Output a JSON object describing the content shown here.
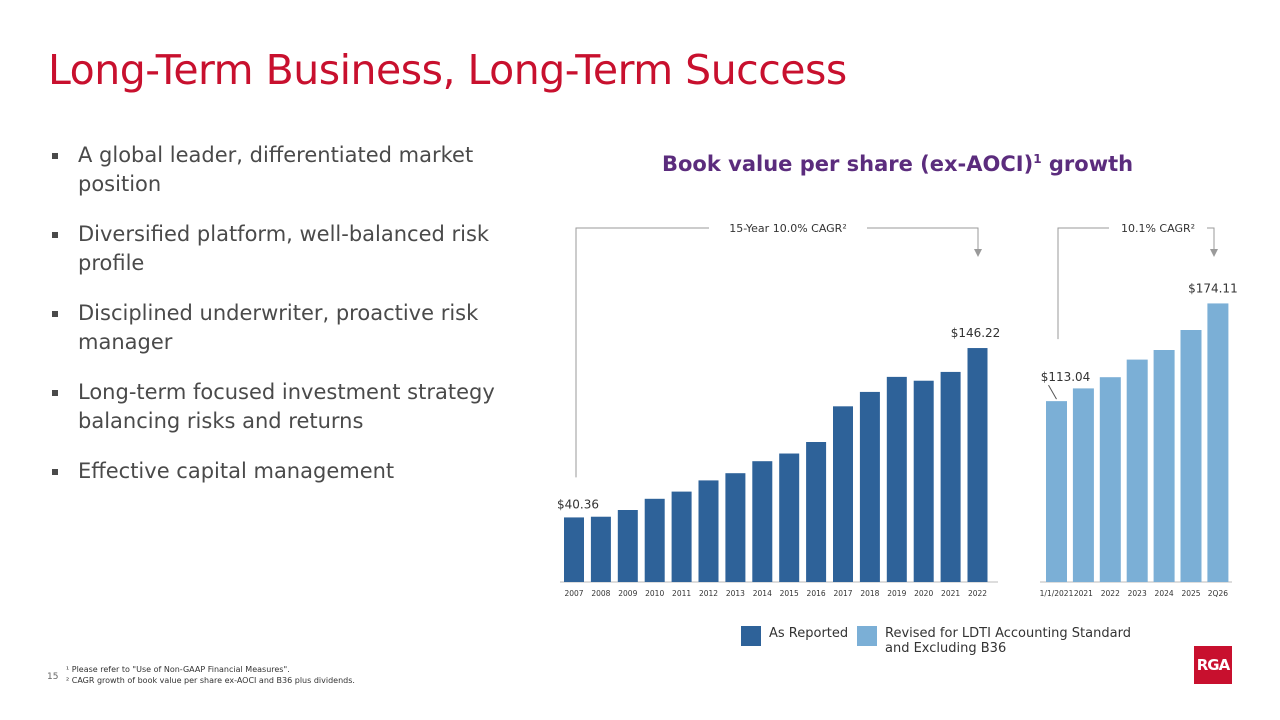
{
  "slide": {
    "title": "Long-Term Business, Long-Term Success",
    "bullets": [
      "A global leader, differentiated market position",
      "Diversified platform, well-balanced risk profile",
      "Disciplined underwriter, proactive risk manager",
      "Long-term focused investment strategy balancing risks and returns",
      "Effective capital management"
    ],
    "page_number": "15",
    "footnotes": [
      "¹ Please refer to \"Use of Non-GAAP Financial Measures\".",
      "² CAGR growth of book value per share ex-AOCI and B36 plus dividends."
    ],
    "logo_text": "RGA"
  },
  "chart_title": {
    "main": "Book value per share (ex-AOCI)",
    "sup": "1",
    "tail": " growth"
  },
  "chart_data": [
    {
      "type": "bar",
      "categories": [
        "2007",
        "2008",
        "2009",
        "2010",
        "2011",
        "2012",
        "2013",
        "2014",
        "2015",
        "2016",
        "2017",
        "2018",
        "2019",
        "2020",
        "2021",
        "2022"
      ],
      "series": [
        {
          "name": "As Reported",
          "color": "#2e6299",
          "values": [
            40.36,
            40.8,
            45.0,
            52.0,
            56.5,
            63.5,
            68.0,
            75.5,
            80.3,
            87.5,
            109.8,
            118.8,
            128.2,
            125.8,
            131.3,
            146.22
          ]
        }
      ],
      "data_labels": {
        "first": "$40.36",
        "last": "$146.22"
      },
      "annotation": "15-Year 10.0% CAGR²"
    },
    {
      "type": "bar",
      "categories": [
        "1/1/2021",
        "2021",
        "2022",
        "2023",
        "2024",
        "2025",
        "2Q26"
      ],
      "series": [
        {
          "name": "Revised for LDTI Accounting Standard and Excluding B36",
          "color": "#7bafd6",
          "values": [
            113.04,
            121.0,
            128.0,
            139.0,
            145.0,
            157.5,
            174.11
          ]
        }
      ],
      "data_labels": {
        "first": "$113.04",
        "last": "$174.11"
      },
      "annotation": "10.1% CAGR²"
    }
  ],
  "legend": [
    {
      "label": "As Reported",
      "color": "#2e6299"
    },
    {
      "label": "Revised for LDTI Accounting Standard and Excluding B36",
      "color": "#7bafd6"
    }
  ]
}
